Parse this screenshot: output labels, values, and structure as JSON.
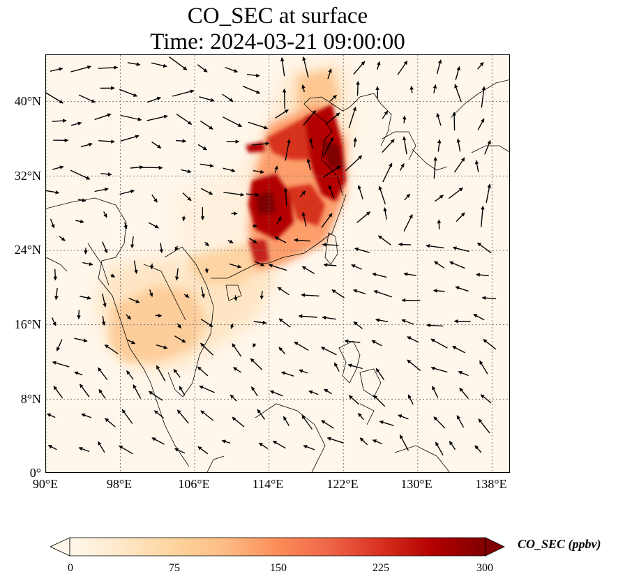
{
  "title": "CO_SEC at surface",
  "subtitle": "Time: 2024-03-21 09:00:00",
  "map": {
    "lon_range": [
      90,
      140
    ],
    "lat_range": [
      0,
      45
    ],
    "lat_ticks": [
      {
        "value": 0,
        "label": "0°"
      },
      {
        "value": 8,
        "label": "8°N"
      },
      {
        "value": 16,
        "label": "16°N"
      },
      {
        "value": 24,
        "label": "24°N"
      },
      {
        "value": 32,
        "label": "32°N"
      },
      {
        "value": 40,
        "label": "40°N"
      }
    ],
    "lon_ticks": [
      {
        "value": 90,
        "label": "90°E"
      },
      {
        "value": 98,
        "label": "98°E"
      },
      {
        "value": 106,
        "label": "106°E"
      },
      {
        "value": 114,
        "label": "114°E"
      },
      {
        "value": 122,
        "label": "122°E"
      },
      {
        "value": 130,
        "label": "130°E"
      },
      {
        "value": 138,
        "label": "138°E"
      }
    ],
    "grid_lines": true
  },
  "colorbar": {
    "label": "CO_SEC (ppbv)",
    "range": [
      0,
      300
    ],
    "ticks": [
      {
        "value": 0,
        "label": "0"
      },
      {
        "value": 75,
        "label": "75"
      },
      {
        "value": 150,
        "label": "150"
      },
      {
        "value": 225,
        "label": "225"
      },
      {
        "value": 300,
        "label": "300"
      }
    ],
    "colors": [
      "#fff7ec",
      "#fee8c8",
      "#fdd49e",
      "#fdbb84",
      "#fc8d59",
      "#ef6548",
      "#d7301f",
      "#b30000",
      "#7f0000"
    ],
    "extend": "both"
  }
}
